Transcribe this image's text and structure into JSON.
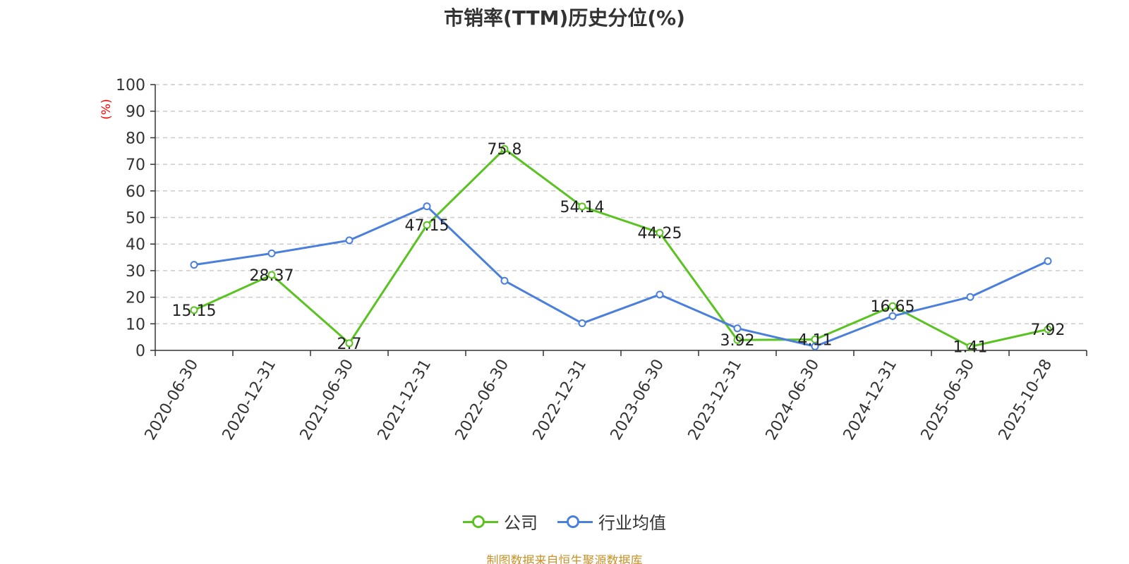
{
  "title": "市销率(TTM)历史分位(%)",
  "source_note": "制图数据来自恒生聚源数据库",
  "colors": {
    "company": "#5ac321",
    "industry": "#4a7fdc",
    "axis": "#333333",
    "grid": "#cccccc",
    "ylabel": "#ff0000"
  },
  "chart_data": {
    "type": "line",
    "title": "市销率(TTM)历史分位(%)",
    "ylabel": "(%)",
    "xlabel": "",
    "ylim": [
      0,
      100
    ],
    "yticks": [
      0,
      10,
      20,
      30,
      40,
      50,
      60,
      70,
      80,
      90,
      100
    ],
    "grid": true,
    "legend_position": "bottom",
    "categories": [
      "2020-06-30",
      "2020-12-31",
      "2021-06-30",
      "2021-12-31",
      "2022-06-30",
      "2022-12-31",
      "2023-06-30",
      "2023-12-31",
      "2024-06-30",
      "2024-12-31",
      "2025-06-30",
      "2025-10-28"
    ],
    "series": [
      {
        "name": "公司",
        "key": "company",
        "values": [
          15.15,
          28.37,
          2.7,
          47.15,
          75.8,
          54.14,
          44.25,
          3.92,
          4.11,
          16.65,
          1.41,
          7.92
        ],
        "labels": [
          "15.15",
          "28.37",
          "2.7",
          "47.15",
          "75.8",
          "54.14",
          "44.25",
          "3.92",
          "4.11",
          "16.65",
          "1.41",
          "7.92"
        ]
      },
      {
        "name": "行业均值",
        "key": "industry",
        "values": [
          32.2,
          36.5,
          41.4,
          54.2,
          26.2,
          10.2,
          21.0,
          8.3,
          1.5,
          12.9,
          20.1,
          33.6
        ]
      }
    ]
  }
}
